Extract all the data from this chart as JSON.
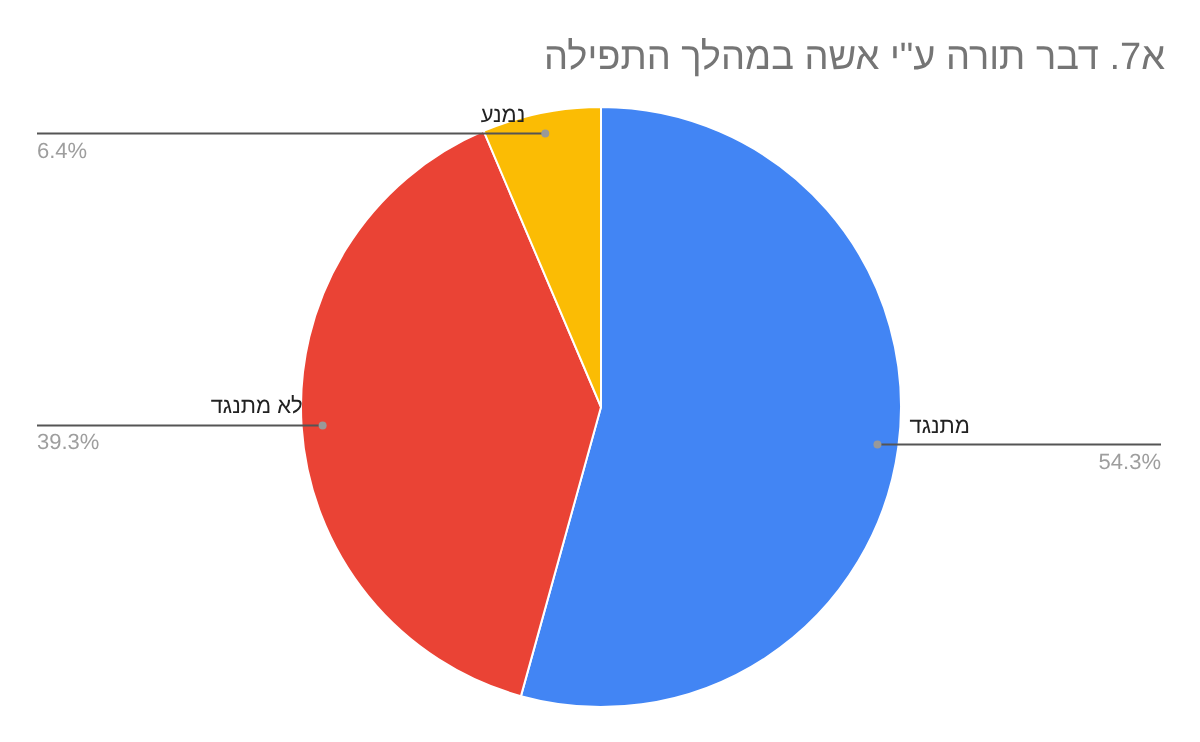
{
  "chart_data": {
    "type": "pie",
    "title": "א7. דבר תורה ע\"י אשה במהלך התפילה",
    "categories": [
      "מתנגד",
      "לא מתנגד",
      "נמנע"
    ],
    "values": [
      54.3,
      39.3,
      6.4
    ],
    "colors": [
      "#4285f4",
      "#ea4335",
      "#fbbc04"
    ],
    "value_labels": [
      "54.3%",
      "39.3%",
      "6.4%"
    ]
  }
}
